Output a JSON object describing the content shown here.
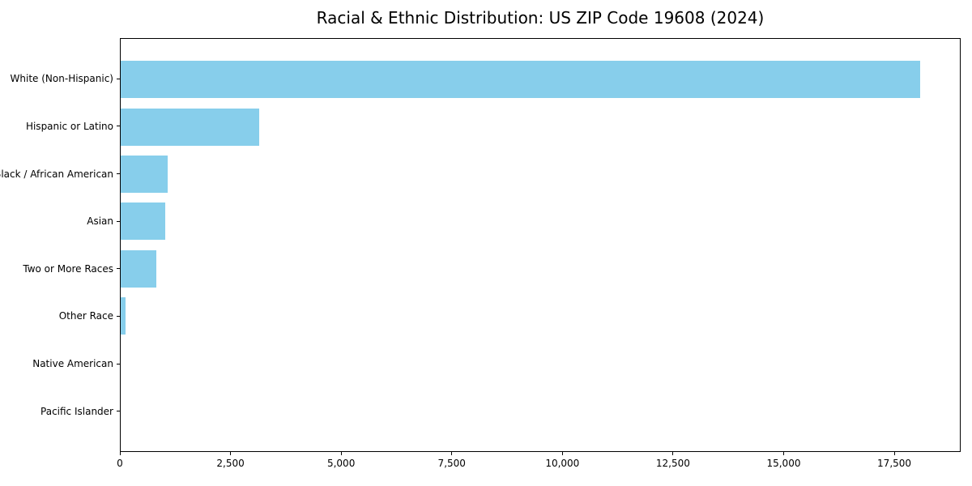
{
  "chart_data": {
    "type": "bar",
    "orientation": "horizontal",
    "title": "Racial & Ethnic Distribution: US ZIP Code 19608 (2024)",
    "categories": [
      "White (Non-Hispanic)",
      "Hispanic or Latino",
      "Black / African American",
      "Asian",
      "Two or More Races",
      "Other Race",
      "Native American",
      "Pacific Islander"
    ],
    "values": [
      18100,
      3130,
      1070,
      1010,
      800,
      110,
      0,
      0
    ],
    "xlabel": "",
    "ylabel": "",
    "xlim": [
      0,
      19000
    ],
    "x_ticks": [
      0,
      2500,
      5000,
      7500,
      10000,
      12500,
      15000,
      17500
    ],
    "x_tick_labels": [
      "0",
      "2,500",
      "5,000",
      "7,500",
      "10,000",
      "12,500",
      "15,000",
      "17,500"
    ],
    "grid": false,
    "legend": null
  },
  "colors": {
    "bar": "#87CEEB",
    "text": "#000000",
    "spine": "#000000",
    "background": "#FFFFFF"
  }
}
